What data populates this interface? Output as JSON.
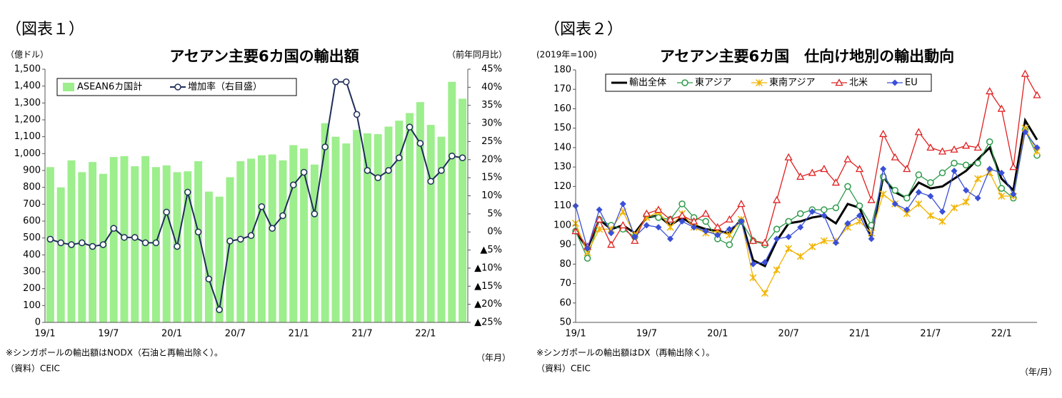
{
  "chart_data": [
    {
      "type": "combo",
      "figure_label": "（図表１）",
      "title": "アセアン主要6カ国の輸出額",
      "y_label": "（億ドル）",
      "y2_label": "（前年同月比）",
      "x_label": "（年月）",
      "note": "※シンガポールの輸出額はNODX（石油と再輸出除く）。",
      "source": "（資料）CEIC",
      "legend": "upper left",
      "categories": [
        "19/1",
        null,
        null,
        null,
        null,
        null,
        "19/7",
        null,
        null,
        null,
        null,
        null,
        "20/1",
        null,
        null,
        null,
        null,
        null,
        "20/7",
        null,
        null,
        null,
        null,
        null,
        "21/1",
        null,
        null,
        null,
        null,
        null,
        "21/7",
        null,
        null,
        null,
        null,
        null,
        "22/1",
        null,
        null,
        null
      ],
      "ylim": [
        0,
        1500
      ],
      "yticks": [
        0,
        100,
        200,
        300,
        400,
        500,
        600,
        700,
        800,
        900,
        {
          "value": 1000,
          "label": "1,000"
        },
        {
          "value": 1100,
          "label": "1,100"
        },
        {
          "value": 1200,
          "label": "1,200"
        },
        {
          "value": 1300,
          "label": "1,300"
        },
        {
          "value": 1400,
          "label": "1,400"
        },
        {
          "value": 1500,
          "label": "1,500"
        }
      ],
      "y2lim": [
        -25,
        45
      ],
      "y2ticks": [
        {
          "value": -25,
          "label": "▲25%"
        },
        {
          "value": -20,
          "label": "▲20%"
        },
        {
          "value": -15,
          "label": "▲15%"
        },
        {
          "value": -10,
          "label": "▲10%"
        },
        {
          "value": -5,
          "label": "▲5%"
        },
        {
          "value": 0,
          "label": "0%"
        },
        {
          "value": 5,
          "label": "5%"
        },
        {
          "value": 10,
          "label": "10%"
        },
        {
          "value": 15,
          "label": "15%"
        },
        {
          "value": 20,
          "label": "20%"
        },
        {
          "value": 25,
          "label": "25%"
        },
        {
          "value": 30,
          "label": "30%"
        },
        {
          "value": 35,
          "label": "35%"
        },
        {
          "value": 40,
          "label": "40%"
        },
        {
          "value": 45,
          "label": "45%"
        }
      ],
      "series": [
        {
          "name": "ASEAN6カ国計",
          "kind": "bar",
          "color": "#9dee8c",
          "values": [
            920,
            800,
            960,
            890,
            950,
            880,
            980,
            985,
            925,
            985,
            920,
            930,
            890,
            895,
            955,
            775,
            745,
            860,
            955,
            970,
            990,
            995,
            960,
            1050,
            1030,
            935,
            1180,
            1100,
            1060,
            1140,
            1120,
            1115,
            1160,
            1195,
            1240,
            1305,
            1170,
            1100,
            1425,
            1325
          ]
        },
        {
          "name": "増加率（右目盛）",
          "kind": "line",
          "axis": "y2",
          "color": "#1f2d5a",
          "marker": "circle",
          "values": [
            -2,
            -3,
            -3.5,
            -3,
            -4,
            -3.5,
            1,
            -1.5,
            -1.5,
            -3,
            -3,
            5.5,
            -4,
            11,
            0,
            -13,
            -21.5,
            -2.5,
            -2,
            -1,
            7,
            1,
            4.5,
            13,
            16.5,
            5,
            23.5,
            41.5,
            41.5,
            32.5,
            17,
            15,
            17,
            20.5,
            29,
            24.5,
            14,
            17,
            21,
            20.5
          ]
        }
      ]
    },
    {
      "type": "line",
      "figure_label": "（図表２）",
      "title": "アセアン主要6カ国　仕向け地別の輸出動向",
      "y_label": "(2019年=100)",
      "x_label": "（年/月）",
      "note": "※シンガポールの輸出額はDX（再輸出除く）。",
      "source": "（資料）CEIC",
      "legend": "upper left",
      "categories": [
        "19/1",
        null,
        null,
        null,
        null,
        null,
        "19/7",
        null,
        null,
        null,
        null,
        null,
        "20/1",
        null,
        null,
        null,
        null,
        null,
        "20/7",
        null,
        null,
        null,
        null,
        null,
        "21/1",
        null,
        null,
        null,
        null,
        null,
        "21/7",
        null,
        null,
        null,
        null,
        null,
        "22/1",
        null,
        null,
        null
      ],
      "ylim": [
        50,
        180
      ],
      "yticks": [
        50,
        60,
        70,
        80,
        90,
        100,
        110,
        120,
        130,
        140,
        150,
        160,
        170,
        180
      ],
      "series": [
        {
          "name": "輸出全体",
          "kind": "line",
          "color": "#000000",
          "marker": "none",
          "width": 3,
          "values": [
            97,
            88,
            103,
            98,
            100,
            96,
            104,
            105,
            100,
            104,
            100,
            98,
            97,
            96,
            103,
            82,
            79,
            92,
            101,
            102,
            104,
            105,
            101,
            111,
            109,
            94,
            125,
            117,
            114,
            122,
            119,
            120,
            124,
            128,
            134,
            140,
            124,
            118,
            154,
            144
          ]
        },
        {
          "name": "東アジア",
          "kind": "line",
          "color": "#2e9a4a",
          "marker": "circle",
          "width": 1.3,
          "values": [
            97,
            83,
            103,
            100,
            98,
            94,
            105,
            104,
            103,
            111,
            104,
            102,
            93,
            90,
            102,
            92,
            90,
            98,
            102,
            106,
            108,
            108,
            109,
            120,
            110,
            100,
            125,
            118,
            114,
            126,
            122,
            127,
            132,
            131,
            132,
            143,
            119,
            114,
            149,
            136
          ]
        },
        {
          "name": "東南アジア",
          "kind": "line",
          "color": "#f0b400",
          "marker": "x",
          "width": 1.3,
          "values": [
            101,
            86,
            98,
            98,
            107,
            95,
            104,
            107,
            99,
            106,
            99,
            96,
            97,
            95,
            103,
            73,
            65,
            77,
            88,
            84,
            89,
            92,
            92,
            99,
            102,
            96,
            116,
            111,
            106,
            111,
            105,
            102,
            109,
            112,
            124,
            127,
            115,
            115,
            150,
            138
          ]
        },
        {
          "name": "北米",
          "kind": "line",
          "color": "#e02020",
          "marker": "triangle",
          "width": 1.3,
          "values": [
            97,
            89,
            103,
            90,
            100,
            92,
            106,
            108,
            103,
            105,
            102,
            106,
            99,
            103,
            111,
            92,
            91,
            113,
            135,
            125,
            127,
            129,
            122,
            134,
            129,
            113,
            147,
            135,
            129,
            148,
            140,
            138,
            139,
            141,
            140,
            169,
            160,
            130,
            178,
            167
          ]
        },
        {
          "name": "EU",
          "kind": "line",
          "color": "#3a4fd8",
          "marker": "diamond",
          "width": 1.3,
          "values": [
            110,
            88,
            108,
            96,
            111,
            94,
            100,
            99,
            93,
            102,
            99,
            97,
            95,
            98,
            102,
            80,
            81,
            93,
            94,
            99,
            107,
            105,
            91,
            101,
            105,
            93,
            129,
            111,
            108,
            117,
            115,
            107,
            128,
            118,
            114,
            129,
            127,
            116,
            148,
            140
          ]
        }
      ]
    }
  ]
}
